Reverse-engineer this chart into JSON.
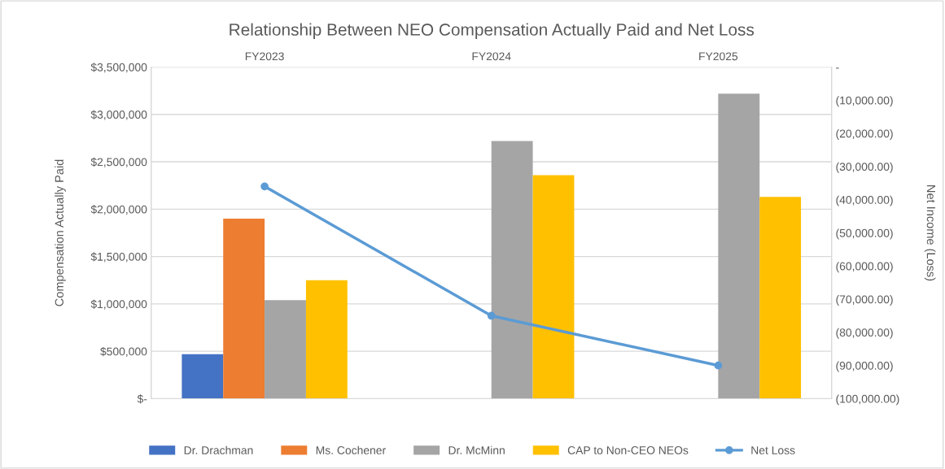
{
  "chart_data": {
    "type": "bar",
    "title": "Relationship Between NEO Compensation Actually Paid and Net Loss",
    "categories": [
      "FY2023",
      "FY2024",
      "FY2025"
    ],
    "ylabel": "Compensation Actually Paid",
    "y2label": "Net Income (Loss)",
    "series": [
      {
        "name": "Dr. Drachman",
        "color": "#4472c4",
        "values": [
          470000,
          null,
          null
        ]
      },
      {
        "name": "Ms. Cochener",
        "color": "#ed7d31",
        "values": [
          1900000,
          null,
          null
        ]
      },
      {
        "name": "Dr. McMinn",
        "color": "#a5a5a5",
        "values": [
          1040000,
          2720000,
          3220000
        ]
      },
      {
        "name": "CAP to Non-CEO NEOs",
        "color": "#ffc000",
        "values": [
          1250000,
          2360000,
          2130000
        ]
      },
      {
        "name": "Net Loss",
        "type": "line",
        "axis": "y2",
        "color": "#5b9bd5",
        "marker": "circle",
        "values": [
          -36000,
          -75000,
          -90000
        ]
      }
    ],
    "ylim": [
      0,
      3500000
    ],
    "yticks": [
      {
        "value": 0,
        "label": "$-"
      },
      {
        "value": 500000,
        "label": "$500,000"
      },
      {
        "value": 1000000,
        "label": "$1,000,000"
      },
      {
        "value": 1500000,
        "label": "$1,500,000"
      },
      {
        "value": 2000000,
        "label": "$2,000,000"
      },
      {
        "value": 2500000,
        "label": "$2,500,000"
      },
      {
        "value": 3000000,
        "label": "$3,000,000"
      },
      {
        "value": 3500000,
        "label": "$3,500,000"
      }
    ],
    "y2lim": [
      -100000,
      0
    ],
    "y2ticks": [
      {
        "value": -100000,
        "label": "(100,000.00)"
      },
      {
        "value": -90000,
        "label": "(90,000.00)"
      },
      {
        "value": -80000,
        "label": "(80,000.00)"
      },
      {
        "value": -70000,
        "label": "(70,000.00)"
      },
      {
        "value": -60000,
        "label": "(60,000.00)"
      },
      {
        "value": -50000,
        "label": "(50,000.00)"
      },
      {
        "value": -40000,
        "label": "(40,000.00)"
      },
      {
        "value": -30000,
        "label": "(30,000.00)"
      },
      {
        "value": -20000,
        "label": "(20,000.00)"
      },
      {
        "value": -10000,
        "label": "(10,000.00)"
      },
      {
        "value": 0,
        "label": "-"
      }
    ],
    "grid": "y",
    "legend": "bottom"
  }
}
